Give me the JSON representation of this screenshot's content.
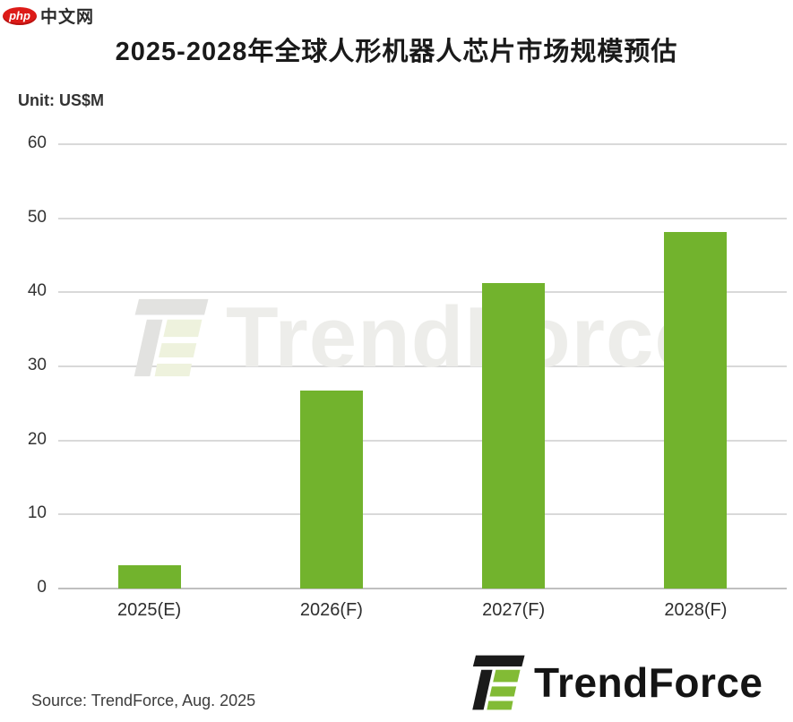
{
  "badge": {
    "php_label": "php",
    "site_label": "中文网",
    "oval_color": "#dd1b18"
  },
  "chart_data": {
    "type": "bar",
    "title": "2025-2028年全球人形机器人芯片市场规模预估",
    "unit_label": "Unit: US$M",
    "categories": [
      "2025(E)",
      "2026(F)",
      "2027(F)",
      "2028(F)"
    ],
    "values": [
      3.2,
      26.7,
      41.3,
      48.2
    ],
    "ylim": [
      0,
      60
    ],
    "yticks": [
      0,
      10,
      20,
      30,
      40,
      50,
      60
    ],
    "grid": true,
    "legend": "none",
    "bar_color": "#72b32d",
    "gridline_color": "#d9d9d9",
    "baseline_color": "#bfbfbf"
  },
  "watermark": {
    "text": "TrendForce"
  },
  "footer": {
    "source": "Source: TrendForce, Aug. 2025",
    "logo_text": "TrendForce"
  }
}
